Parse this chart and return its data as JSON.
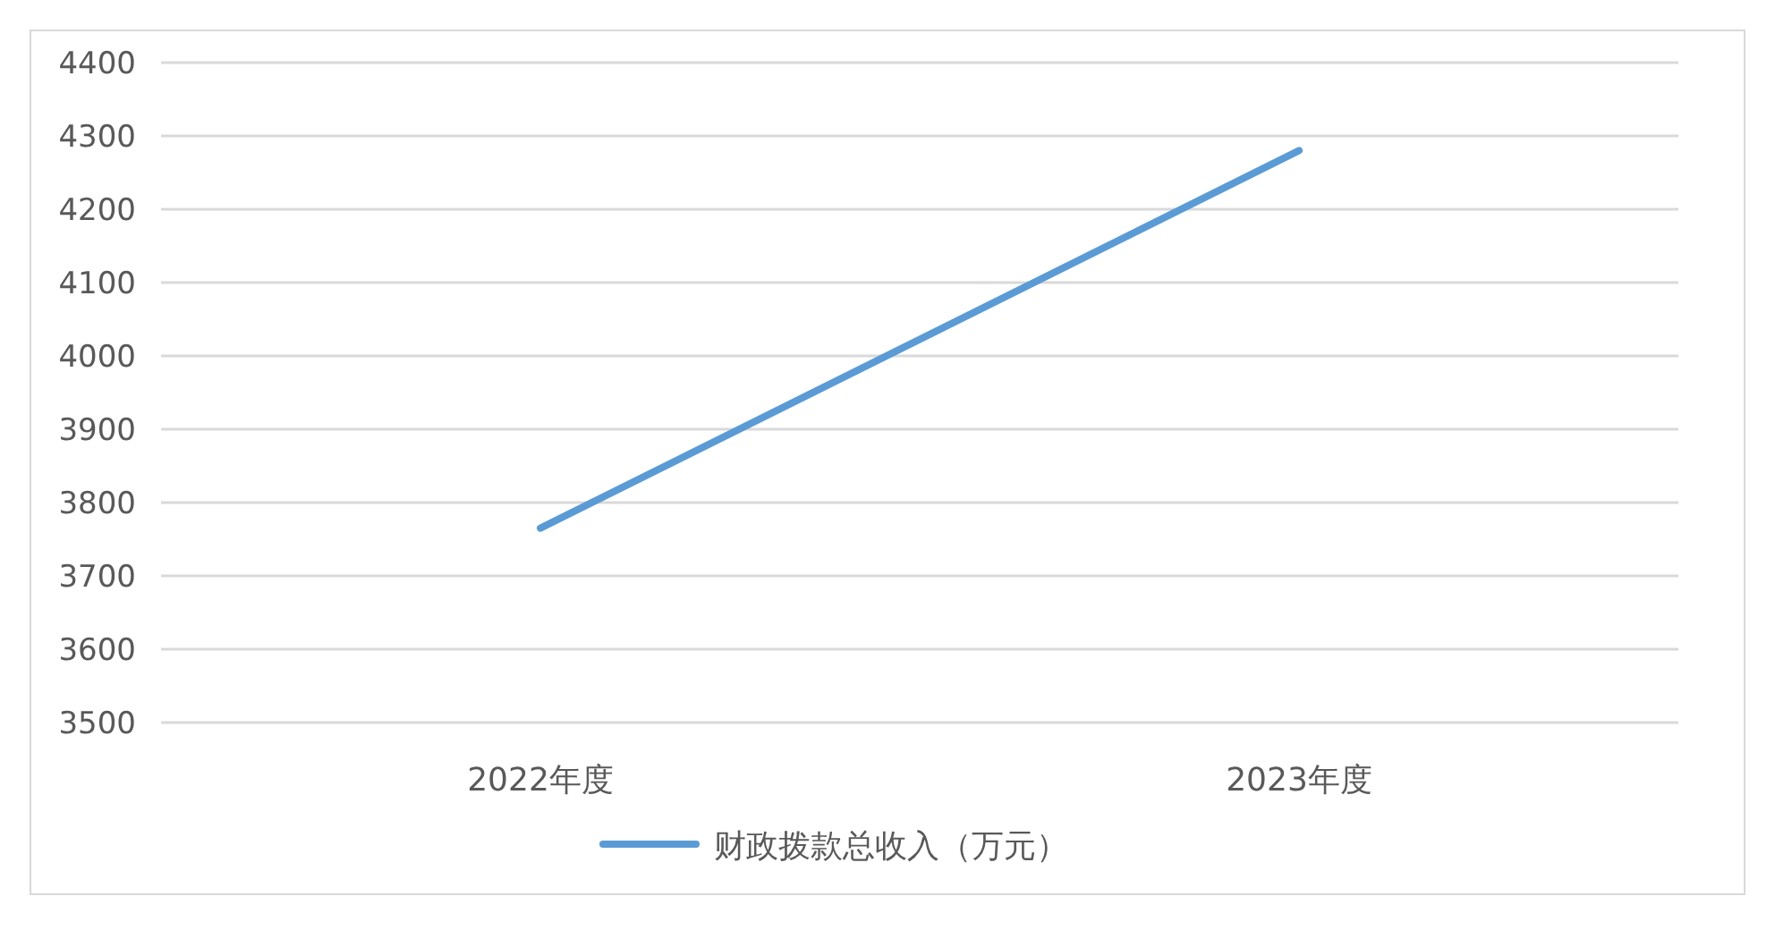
{
  "chart_data": {
    "type": "line",
    "categories": [
      "2022年度",
      "2023年度"
    ],
    "series": [
      {
        "name": "财政拨款总收入（万元）",
        "color": "#5b9bd5",
        "values": [
          3765,
          4280
        ]
      }
    ],
    "ylim": [
      3500,
      4400
    ],
    "yticks": [
      3500,
      3600,
      3700,
      3800,
      3900,
      4000,
      4100,
      4200,
      4300,
      4400
    ],
    "grid": "y",
    "legend": "bottom"
  }
}
